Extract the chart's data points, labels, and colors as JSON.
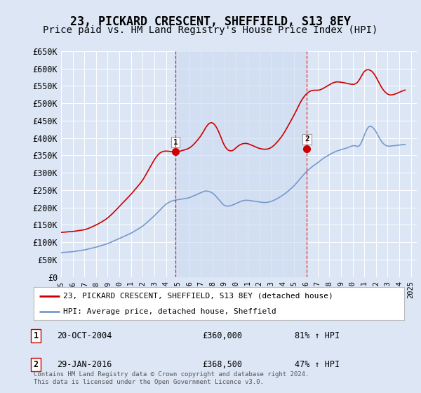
{
  "title": "23, PICKARD CRESCENT, SHEFFIELD, S13 8EY",
  "subtitle": "Price paid vs. HM Land Registry's House Price Index (HPI)",
  "title_fontsize": 12,
  "subtitle_fontsize": 10,
  "ylim": [
    0,
    650000
  ],
  "yticks": [
    0,
    50000,
    100000,
    150000,
    200000,
    250000,
    300000,
    350000,
    400000,
    450000,
    500000,
    550000,
    600000,
    650000
  ],
  "ytick_labels": [
    "£0",
    "£50K",
    "£100K",
    "£150K",
    "£200K",
    "£250K",
    "£300K",
    "£350K",
    "£400K",
    "£450K",
    "£500K",
    "£550K",
    "£600K",
    "£650K"
  ],
  "xlim_start": 1995.0,
  "xlim_end": 2025.5,
  "background_color": "#dce6f5",
  "plot_bg_color": "#dce6f5",
  "grid_color": "#ffffff",
  "red_color": "#cc0000",
  "blue_color": "#7799cc",
  "shade_color": "#d0dff5",
  "sale1_x": 2004.8,
  "sale1_y": 360000,
  "sale1_label": "1",
  "sale2_x": 2016.08,
  "sale2_y": 368500,
  "sale2_label": "2",
  "legend_red": "23, PICKARD CRESCENT, SHEFFIELD, S13 8EY (detached house)",
  "legend_blue": "HPI: Average price, detached house, Sheffield",
  "ann1_date": "20-OCT-2004",
  "ann1_price": "£360,000",
  "ann1_hpi": "81% ↑ HPI",
  "ann2_date": "29-JAN-2016",
  "ann2_price": "£368,500",
  "ann2_hpi": "47% ↑ HPI",
  "footer": "Contains HM Land Registry data © Crown copyright and database right 2024.\nThis data is licensed under the Open Government Licence v3.0.",
  "hpi_years": [
    1995.0,
    1995.1,
    1995.2,
    1995.3,
    1995.4,
    1995.5,
    1995.6,
    1995.7,
    1995.8,
    1995.9,
    1996.0,
    1996.1,
    1996.2,
    1996.3,
    1996.4,
    1996.5,
    1996.6,
    1996.7,
    1996.8,
    1996.9,
    1997.0,
    1997.1,
    1997.2,
    1997.3,
    1997.4,
    1997.5,
    1997.6,
    1997.7,
    1997.8,
    1997.9,
    1998.0,
    1998.1,
    1998.2,
    1998.3,
    1998.4,
    1998.5,
    1998.6,
    1998.7,
    1998.8,
    1998.9,
    1999.0,
    1999.1,
    1999.2,
    1999.3,
    1999.4,
    1999.5,
    1999.6,
    1999.7,
    1999.8,
    1999.9,
    2000.0,
    2000.1,
    2000.2,
    2000.3,
    2000.4,
    2000.5,
    2000.6,
    2000.7,
    2000.8,
    2000.9,
    2001.0,
    2001.1,
    2001.2,
    2001.3,
    2001.4,
    2001.5,
    2001.6,
    2001.7,
    2001.8,
    2001.9,
    2002.0,
    2002.1,
    2002.2,
    2002.3,
    2002.4,
    2002.5,
    2002.6,
    2002.7,
    2002.8,
    2002.9,
    2003.0,
    2003.1,
    2003.2,
    2003.3,
    2003.4,
    2003.5,
    2003.6,
    2003.7,
    2003.8,
    2003.9,
    2004.0,
    2004.1,
    2004.2,
    2004.3,
    2004.4,
    2004.5,
    2004.6,
    2004.7,
    2004.8,
    2004.9,
    2005.0,
    2005.1,
    2005.2,
    2005.3,
    2005.4,
    2005.5,
    2005.6,
    2005.7,
    2005.8,
    2005.9,
    2006.0,
    2006.1,
    2006.2,
    2006.3,
    2006.4,
    2006.5,
    2006.6,
    2006.7,
    2006.8,
    2006.9,
    2007.0,
    2007.1,
    2007.2,
    2007.3,
    2007.4,
    2007.5,
    2007.6,
    2007.7,
    2007.8,
    2007.9,
    2008.0,
    2008.1,
    2008.2,
    2008.3,
    2008.4,
    2008.5,
    2008.6,
    2008.7,
    2008.8,
    2008.9,
    2009.0,
    2009.1,
    2009.2,
    2009.3,
    2009.4,
    2009.5,
    2009.6,
    2009.7,
    2009.8,
    2009.9,
    2010.0,
    2010.1,
    2010.2,
    2010.3,
    2010.4,
    2010.5,
    2010.6,
    2010.7,
    2010.8,
    2010.9,
    2011.0,
    2011.1,
    2011.2,
    2011.3,
    2011.4,
    2011.5,
    2011.6,
    2011.7,
    2011.8,
    2011.9,
    2012.0,
    2012.1,
    2012.2,
    2012.3,
    2012.4,
    2012.5,
    2012.6,
    2012.7,
    2012.8,
    2012.9,
    2013.0,
    2013.1,
    2013.2,
    2013.3,
    2013.4,
    2013.5,
    2013.6,
    2013.7,
    2013.8,
    2013.9,
    2014.0,
    2014.1,
    2014.2,
    2014.3,
    2014.4,
    2014.5,
    2014.6,
    2014.7,
    2014.8,
    2014.9,
    2015.0,
    2015.1,
    2015.2,
    2015.3,
    2015.4,
    2015.5,
    2015.6,
    2015.7,
    2015.8,
    2015.9,
    2016.0,
    2016.1,
    2016.2,
    2016.3,
    2016.4,
    2016.5,
    2016.6,
    2016.7,
    2016.8,
    2016.9,
    2017.0,
    2017.1,
    2017.2,
    2017.3,
    2017.4,
    2017.5,
    2017.6,
    2017.7,
    2017.8,
    2017.9,
    2018.0,
    2018.1,
    2018.2,
    2018.3,
    2018.4,
    2018.5,
    2018.6,
    2018.7,
    2018.8,
    2018.9,
    2019.0,
    2019.1,
    2019.2,
    2019.3,
    2019.4,
    2019.5,
    2019.6,
    2019.7,
    2019.8,
    2019.9,
    2020.0,
    2020.1,
    2020.2,
    2020.3,
    2020.4,
    2020.5,
    2020.6,
    2020.7,
    2020.8,
    2020.9,
    2021.0,
    2021.1,
    2021.2,
    2021.3,
    2021.4,
    2021.5,
    2021.6,
    2021.7,
    2021.8,
    2021.9,
    2022.0,
    2022.1,
    2022.2,
    2022.3,
    2022.4,
    2022.5,
    2022.6,
    2022.7,
    2022.8,
    2022.9,
    2023.0,
    2023.1,
    2023.2,
    2023.3,
    2023.4,
    2023.5,
    2023.6,
    2023.7,
    2023.8,
    2023.9,
    2024.0,
    2024.1,
    2024.2,
    2024.3,
    2024.4,
    2024.5
  ],
  "hpi_sheffield": [
    70000,
    70500,
    71000,
    71200,
    71400,
    71600,
    71800,
    72000,
    72200,
    72400,
    73000,
    73500,
    74000,
    74500,
    75000,
    75500,
    76000,
    76500,
    77000,
    77500,
    78000,
    78800,
    79600,
    80400,
    81200,
    82000,
    82800,
    83600,
    84400,
    85200,
    86000,
    87000,
    88000,
    89000,
    90000,
    91000,
    92000,
    93000,
    94000,
    95000,
    96000,
    97500,
    99000,
    100500,
    102000,
    103500,
    105000,
    106500,
    108000,
    109500,
    111000,
    112500,
    114000,
    115500,
    117000,
    118500,
    120000,
    121500,
    123000,
    124500,
    126000,
    128000,
    130000,
    132000,
    134000,
    136000,
    138000,
    140000,
    142000,
    144000,
    146000,
    149000,
    152000,
    155000,
    158000,
    161000,
    164000,
    167000,
    170000,
    173000,
    176000,
    179500,
    183000,
    186500,
    190000,
    193500,
    197000,
    200500,
    204000,
    207500,
    210000,
    212000,
    214000,
    216000,
    218000,
    219000,
    220000,
    221000,
    221500,
    222000,
    222500,
    223000,
    223500,
    224000,
    224500,
    225000,
    225500,
    226000,
    226500,
    227000,
    228000,
    229500,
    231000,
    232500,
    234000,
    235500,
    237000,
    238500,
    240000,
    241500,
    243000,
    244500,
    246000,
    247500,
    248500,
    248000,
    247000,
    246000,
    245000,
    244000,
    242000,
    239000,
    236000,
    232000,
    228000,
    224000,
    220000,
    216000,
    212000,
    208000,
    205000,
    204000,
    203000,
    203500,
    204000,
    205000,
    206000,
    207000,
    208000,
    210000,
    212000,
    213500,
    215000,
    216500,
    218000,
    219000,
    220000,
    220500,
    221000,
    221500,
    221000,
    220500,
    220000,
    219500,
    219000,
    218500,
    218000,
    217500,
    217000,
    216500,
    216000,
    215500,
    215000,
    214500,
    214000,
    214000,
    214500,
    215000,
    215500,
    216000,
    217000,
    218500,
    220000,
    221500,
    223000,
    225000,
    227000,
    229000,
    231000,
    233000,
    235000,
    237500,
    240000,
    242500,
    245000,
    248000,
    251000,
    254000,
    257000,
    260000,
    263000,
    267000,
    271000,
    275000,
    279000,
    283000,
    287000,
    291000,
    295000,
    299000,
    302000,
    305000,
    308000,
    311000,
    314000,
    317000,
    320000,
    322000,
    324000,
    326000,
    328000,
    331000,
    334000,
    337000,
    340000,
    342000,
    344000,
    346000,
    348000,
    350000,
    352000,
    354000,
    356000,
    357500,
    359000,
    360500,
    362000,
    363500,
    364500,
    365500,
    366000,
    367000,
    368000,
    369000,
    370000,
    371000,
    372500,
    374000,
    375500,
    377000,
    378000,
    378500,
    379000,
    378000,
    375000,
    372000,
    375000,
    382000,
    390000,
    398000,
    408000,
    417000,
    426000,
    432000,
    435000,
    436000,
    435000,
    432000,
    428000,
    424000,
    419000,
    413000,
    406000,
    399000,
    393000,
    388000,
    384000,
    381000,
    379000,
    377000,
    376000,
    376000,
    376500,
    377000,
    377500,
    378000,
    378000,
    378000,
    378500,
    379000,
    379500,
    380000,
    380500,
    381000,
    381500,
    382000
  ],
  "red_years": [
    1995.0,
    1995.1,
    1995.2,
    1995.3,
    1995.4,
    1995.5,
    1995.6,
    1995.7,
    1995.8,
    1995.9,
    1996.0,
    1996.1,
    1996.2,
    1996.3,
    1996.4,
    1996.5,
    1996.6,
    1996.7,
    1996.8,
    1996.9,
    1997.0,
    1997.1,
    1997.2,
    1997.3,
    1997.4,
    1997.5,
    1997.6,
    1997.7,
    1997.8,
    1997.9,
    1998.0,
    1998.1,
    1998.2,
    1998.3,
    1998.4,
    1998.5,
    1998.6,
    1998.7,
    1998.8,
    1998.9,
    1999.0,
    1999.1,
    1999.2,
    1999.3,
    1999.4,
    1999.5,
    1999.6,
    1999.7,
    1999.8,
    1999.9,
    2000.0,
    2000.1,
    2000.2,
    2000.3,
    2000.4,
    2000.5,
    2000.6,
    2000.7,
    2000.8,
    2000.9,
    2001.0,
    2001.1,
    2001.2,
    2001.3,
    2001.4,
    2001.5,
    2001.6,
    2001.7,
    2001.8,
    2001.9,
    2002.0,
    2002.1,
    2002.2,
    2002.3,
    2002.4,
    2002.5,
    2002.6,
    2002.7,
    2002.8,
    2002.9,
    2003.0,
    2003.1,
    2003.2,
    2003.3,
    2003.4,
    2003.5,
    2003.6,
    2003.7,
    2003.8,
    2003.9,
    2004.0,
    2004.1,
    2004.2,
    2004.3,
    2004.4,
    2004.5,
    2004.6,
    2004.7,
    2004.8,
    2004.9,
    2005.0,
    2005.1,
    2005.2,
    2005.3,
    2005.4,
    2005.5,
    2005.6,
    2005.7,
    2005.8,
    2005.9,
    2006.0,
    2006.1,
    2006.2,
    2006.3,
    2006.4,
    2006.5,
    2006.6,
    2006.7,
    2006.8,
    2006.9,
    2007.0,
    2007.1,
    2007.2,
    2007.3,
    2007.4,
    2007.5,
    2007.6,
    2007.7,
    2007.8,
    2007.9,
    2008.0,
    2008.1,
    2008.2,
    2008.3,
    2008.4,
    2008.5,
    2008.6,
    2008.7,
    2008.8,
    2008.9,
    2009.0,
    2009.1,
    2009.2,
    2009.3,
    2009.4,
    2009.5,
    2009.6,
    2009.7,
    2009.8,
    2009.9,
    2010.0,
    2010.1,
    2010.2,
    2010.3,
    2010.4,
    2010.5,
    2010.6,
    2010.7,
    2010.8,
    2010.9,
    2011.0,
    2011.1,
    2011.2,
    2011.3,
    2011.4,
    2011.5,
    2011.6,
    2011.7,
    2011.8,
    2011.9,
    2012.0,
    2012.1,
    2012.2,
    2012.3,
    2012.4,
    2012.5,
    2012.6,
    2012.7,
    2012.8,
    2012.9,
    2013.0,
    2013.1,
    2013.2,
    2013.3,
    2013.4,
    2013.5,
    2013.6,
    2013.7,
    2013.8,
    2013.9,
    2014.0,
    2014.1,
    2014.2,
    2014.3,
    2014.4,
    2014.5,
    2014.6,
    2014.7,
    2014.8,
    2014.9,
    2015.0,
    2015.1,
    2015.2,
    2015.3,
    2015.4,
    2015.5,
    2015.6,
    2015.7,
    2015.8,
    2015.9,
    2016.0,
    2016.1,
    2016.2,
    2016.3,
    2016.4,
    2016.5,
    2016.6,
    2016.7,
    2016.8,
    2016.9,
    2017.0,
    2017.1,
    2017.2,
    2017.3,
    2017.4,
    2017.5,
    2017.6,
    2017.7,
    2017.8,
    2017.9,
    2018.0,
    2018.1,
    2018.2,
    2018.3,
    2018.4,
    2018.5,
    2018.6,
    2018.7,
    2018.8,
    2018.9,
    2019.0,
    2019.1,
    2019.2,
    2019.3,
    2019.4,
    2019.5,
    2019.6,
    2019.7,
    2019.8,
    2019.9,
    2020.0,
    2020.1,
    2020.2,
    2020.3,
    2020.4,
    2020.5,
    2020.6,
    2020.7,
    2020.8,
    2020.9,
    2021.0,
    2021.1,
    2021.2,
    2021.3,
    2021.4,
    2021.5,
    2021.6,
    2021.7,
    2021.8,
    2021.9,
    2022.0,
    2022.1,
    2022.2,
    2022.3,
    2022.4,
    2022.5,
    2022.6,
    2022.7,
    2022.8,
    2022.9,
    2023.0,
    2023.1,
    2023.2,
    2023.3,
    2023.4,
    2023.5,
    2023.6,
    2023.7,
    2023.8,
    2023.9,
    2024.0,
    2024.1,
    2024.2,
    2024.3,
    2024.4,
    2024.5
  ],
  "red_values": [
    128000,
    128500,
    129000,
    129300,
    129600,
    130000,
    130200,
    130400,
    130600,
    130800,
    131000,
    131500,
    132000,
    132500,
    133000,
    133500,
    134000,
    134500,
    135000,
    135500,
    136000,
    137000,
    138000,
    139000,
    140500,
    142000,
    143500,
    145000,
    146500,
    148000,
    150000,
    151500,
    153000,
    155000,
    157000,
    159000,
    161000,
    163000,
    165000,
    167000,
    170000,
    173000,
    176000,
    179000,
    182000,
    185500,
    189000,
    192500,
    196000,
    199500,
    203000,
    206500,
    210000,
    213500,
    217000,
    220500,
    224000,
    227500,
    231000,
    234500,
    238000,
    242000,
    246000,
    250000,
    254000,
    258000,
    262000,
    266000,
    270000,
    274000,
    278000,
    284000,
    290000,
    296000,
    302000,
    308000,
    314000,
    320000,
    326000,
    332000,
    338000,
    343000,
    348000,
    352000,
    355000,
    358000,
    360000,
    361000,
    362000,
    362500,
    363000,
    362500,
    362000,
    361500,
    361000,
    360500,
    360000,
    360000,
    360000,
    360000,
    360500,
    361000,
    362000,
    363000,
    364000,
    365000,
    366000,
    367000,
    368000,
    369000,
    371000,
    373000,
    376000,
    379000,
    382000,
    386000,
    390000,
    394000,
    398000,
    402000,
    406000,
    412000,
    418000,
    424000,
    430000,
    436000,
    440000,
    443000,
    445000,
    446000,
    445000,
    442000,
    438000,
    433000,
    427000,
    420000,
    412000,
    403000,
    394000,
    385000,
    377000,
    372000,
    368000,
    365000,
    363000,
    362000,
    362000,
    363000,
    365000,
    368000,
    372000,
    375000,
    378000,
    380000,
    382000,
    383000,
    384000,
    384500,
    385000,
    385000,
    384000,
    383000,
    381500,
    380000,
    378500,
    377000,
    375500,
    374000,
    372500,
    371000,
    370000,
    369000,
    368500,
    368000,
    367500,
    367000,
    367500,
    368000,
    369000,
    370000,
    372000,
    374000,
    377000,
    380000,
    383000,
    387000,
    391000,
    395000,
    399000,
    403000,
    408000,
    413000,
    419000,
    425000,
    431000,
    437000,
    443000,
    449000,
    455000,
    461000,
    467000,
    474000,
    481000,
    488000,
    495000,
    502000,
    508000,
    513000,
    518000,
    522000,
    526000,
    529000,
    532000,
    534000,
    536000,
    537000,
    537500,
    538000,
    537500,
    537000,
    537000,
    537500,
    538000,
    539500,
    541000,
    543000,
    545000,
    547000,
    549000,
    551000,
    553000,
    555000,
    557000,
    558500,
    560000,
    561000,
    561500,
    562000,
    561500,
    561000,
    560500,
    560000,
    559500,
    559000,
    558000,
    557000,
    556000,
    555500,
    555000,
    554500,
    554000,
    554000,
    554500,
    555500,
    558000,
    562000,
    568000,
    575000,
    582000,
    588000,
    593000,
    596000,
    597000,
    597500,
    597000,
    596000,
    594000,
    591000,
    587000,
    582000,
    576000,
    570000,
    563000,
    556000,
    550000,
    544000,
    539000,
    535000,
    531000,
    528000,
    526000,
    524000,
    523000,
    523000,
    524000,
    525000,
    526000,
    527000,
    528500,
    530000,
    531000,
    533000,
    534500,
    536000,
    537500,
    539000
  ]
}
